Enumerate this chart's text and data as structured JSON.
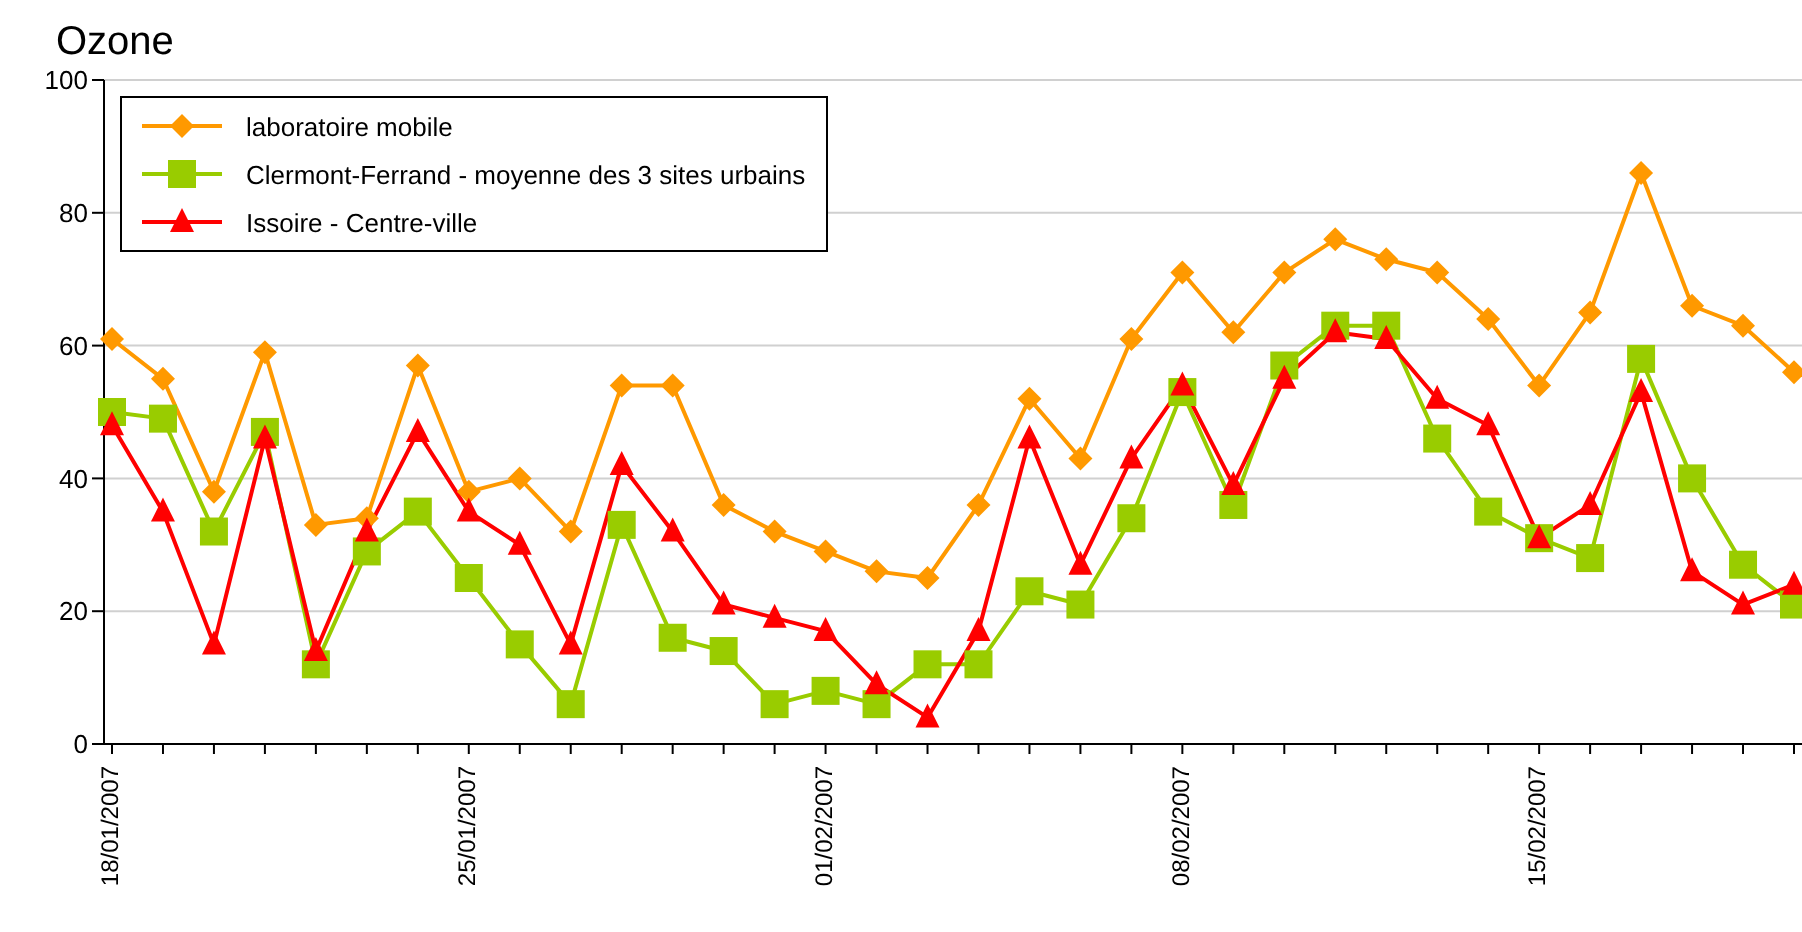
{
  "chart_data": {
    "type": "line",
    "title": "Ozone",
    "categories": [
      "18/01/2007",
      null,
      null,
      null,
      null,
      null,
      null,
      "25/01/2007",
      null,
      null,
      null,
      null,
      null,
      null,
      "01/02/2007",
      null,
      null,
      null,
      null,
      null,
      null,
      "08/02/2007",
      null,
      null,
      null,
      null,
      null,
      null,
      "15/02/2007",
      null,
      null,
      null,
      null,
      null
    ],
    "series": [
      {
        "name": "laboratoire mobile",
        "color": "#ff9900",
        "marker": "diamond",
        "values": [
          61,
          55,
          38,
          59,
          33,
          34,
          57,
          38,
          40,
          32,
          54,
          54,
          36,
          32,
          29,
          26,
          25,
          36,
          52,
          43,
          61,
          71,
          62,
          71,
          76,
          73,
          71,
          64,
          54,
          65,
          86,
          66,
          63,
          56
        ]
      },
      {
        "name": "Clermont-Ferrand - moyenne des 3 sites urbains",
        "color": "#99cc00",
        "marker": "square",
        "values": [
          50,
          49,
          32,
          47,
          12,
          29,
          35,
          25,
          15,
          6,
          33,
          16,
          14,
          6,
          8,
          6,
          12,
          12,
          23,
          21,
          34,
          53,
          36,
          57,
          63,
          63,
          46,
          35,
          31,
          28,
          58,
          40,
          27,
          21
        ]
      },
      {
        "name": "Issoire - Centre-ville",
        "color": "#ff0000",
        "marker": "triangle",
        "values": [
          48,
          35,
          15,
          46,
          14,
          32,
          47,
          35,
          30,
          15,
          42,
          32,
          21,
          19,
          17,
          9,
          4,
          17,
          46,
          27,
          43,
          54,
          39,
          55,
          62,
          61,
          52,
          48,
          31,
          36,
          53,
          26,
          21,
          24
        ]
      }
    ],
    "ylim": [
      0,
      100
    ],
    "yticks": [
      0,
      20,
      40,
      60,
      80,
      100
    ],
    "grid": "y",
    "legend": "top left"
  }
}
